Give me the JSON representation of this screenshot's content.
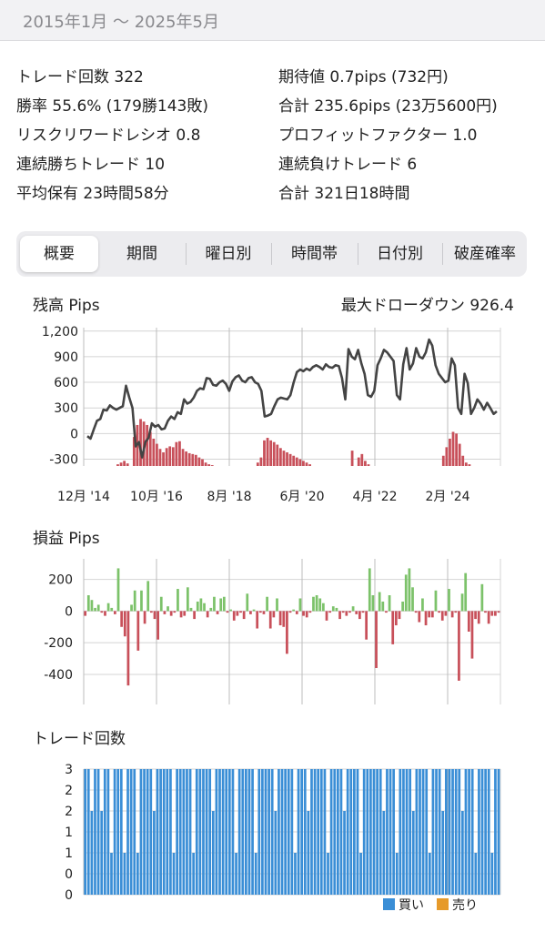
{
  "header": {
    "date_range": "2015年1月 〜 2025年5月"
  },
  "stats": {
    "trades": "トレード回数 322",
    "expectancy": "期待値 0.7pips (732円)",
    "win_rate": "勝率 55.6% (179勝143敗)",
    "total": "合計 235.6pips (23万5600円)",
    "risk_reward": "リスクリワードレシオ 0.8",
    "profit_factor": "プロフィットファクター 1.0",
    "win_streak": "連続勝ちトレード 10",
    "loss_streak": "連続負けトレード 6",
    "avg_hold": "平均保有 23時間58分",
    "total_hold": "合計 321日18時間"
  },
  "tabs": [
    "概要",
    "期間",
    "曜日別",
    "時間帯",
    "日付別",
    "破産確率"
  ],
  "colors": {
    "balance_line": "#444444",
    "drawdown_bar": "#c8505a",
    "profit": "#7cc26a",
    "loss": "#c8505a",
    "buy": "#3a8ed6",
    "sell": "#e69a2a"
  },
  "chart_data": [
    {
      "type": "line",
      "title": "残高 Pips",
      "annotation": "最大ドローダウン 926.4",
      "y_ticks": [
        "1,200",
        "900",
        "600",
        "300",
        "0",
        "-300"
      ],
      "x_ticks": [
        "12月 '14",
        "10月 '16",
        "8月 '18",
        "6月 '20",
        "4月 '22",
        "2月 '24"
      ],
      "ylim": [
        -380,
        1240
      ],
      "balance": [
        -30,
        -60,
        50,
        150,
        170,
        280,
        270,
        330,
        300,
        280,
        300,
        320,
        560,
        420,
        300,
        -150,
        -100,
        -280,
        -100,
        -50,
        120,
        80,
        100,
        50,
        60,
        150,
        200,
        170,
        250,
        230,
        400,
        350,
        370,
        420,
        500,
        530,
        520,
        650,
        640,
        570,
        560,
        600,
        620,
        580,
        500,
        610,
        660,
        680,
        620,
        600,
        650,
        660,
        600,
        580,
        500,
        200,
        210,
        230,
        320,
        400,
        420,
        410,
        400,
        450,
        600,
        720,
        750,
        730,
        760,
        740,
        780,
        800,
        780,
        750,
        810,
        780,
        770,
        800,
        790,
        650,
        400,
        990,
        900,
        870,
        980,
        820,
        700,
        450,
        430,
        500,
        800,
        880,
        980,
        950,
        900,
        850,
        450,
        400,
        810,
        1000,
        750,
        820,
        1000,
        900,
        880,
        950,
        1100,
        1030,
        800,
        700,
        650,
        600,
        620,
        880,
        800,
        300,
        230,
        700,
        590,
        230,
        300,
        400,
        350,
        280,
        360,
        300,
        230,
        260
      ],
      "drawdown": [
        0,
        0,
        0,
        0,
        0,
        0,
        0,
        0,
        0,
        0,
        20,
        40,
        60,
        30,
        0,
        340,
        480,
        550,
        520,
        480,
        400,
        320,
        260,
        200,
        160,
        210,
        230,
        220,
        280,
        290,
        200,
        170,
        150,
        140,
        130,
        100,
        80,
        40,
        20,
        10,
        0,
        0,
        0,
        0,
        0,
        0,
        0,
        0,
        0,
        0,
        0,
        0,
        0,
        40,
        100,
        300,
        330,
        300,
        280,
        250,
        210,
        180,
        160,
        140,
        120,
        100,
        80,
        60,
        40,
        20,
        0,
        0,
        0,
        0,
        0,
        0,
        0,
        0,
        0,
        0,
        0,
        0,
        180,
        0,
        100,
        140,
        60,
        20,
        0,
        0,
        0,
        0,
        0,
        0,
        0,
        0,
        0,
        0,
        0,
        0,
        0,
        0,
        0,
        0,
        0,
        0,
        0,
        0,
        0,
        0,
        120,
        220,
        320,
        400,
        380,
        260,
        120,
        40,
        20,
        0,
        0,
        0,
        0,
        0,
        0,
        0,
        0,
        0
      ]
    },
    {
      "type": "bar",
      "title": "損益 Pips",
      "y_ticks": [
        "200",
        "0",
        "-200",
        "-400"
      ],
      "ylim": [
        -590,
        330
      ],
      "values": [
        -30,
        100,
        70,
        20,
        40,
        -10,
        -30,
        50,
        20,
        -20,
        270,
        -100,
        -160,
        -470,
        40,
        130,
        -250,
        130,
        -80,
        190,
        -10,
        -50,
        -180,
        90,
        -20,
        30,
        -30,
        -10,
        140,
        -40,
        -30,
        150,
        20,
        -50,
        60,
        80,
        50,
        -40,
        20,
        90,
        -20,
        80,
        90,
        -10,
        10,
        -60,
        -30,
        -10,
        -50,
        110,
        -20,
        10,
        -110,
        -10,
        -20,
        90,
        -110,
        -40,
        80,
        -90,
        -100,
        -270,
        -10,
        10,
        -20,
        80,
        -30,
        -40,
        -10,
        90,
        100,
        80,
        50,
        -60,
        -10,
        30,
        20,
        -50,
        -10,
        -30,
        -10,
        30,
        -20,
        -50,
        -10,
        -180,
        270,
        100,
        -360,
        120,
        60,
        -10,
        100,
        -210,
        -90,
        -50,
        60,
        230,
        270,
        150,
        -10,
        -70,
        80,
        -90,
        -40,
        -40,
        130,
        -10,
        -60,
        -30,
        140,
        -40,
        -10,
        -440,
        110,
        240,
        -130,
        -300,
        -50,
        -80,
        170,
        -10,
        -80,
        -30,
        -30,
        -10
      ]
    },
    {
      "type": "bar",
      "title": "トレード回数",
      "y_ticks": [
        "3",
        "2",
        "2",
        "1",
        "1",
        "0",
        "0"
      ],
      "ylim": [
        0,
        3
      ],
      "legend": [
        "買い",
        "売り"
      ],
      "values": [
        3,
        3,
        2,
        3,
        3,
        2,
        3,
        3,
        1,
        3,
        3,
        3,
        1,
        3,
        3,
        3,
        1,
        3,
        3,
        3,
        3,
        2,
        3,
        3,
        3,
        3,
        3,
        1,
        3,
        3,
        3,
        3,
        3,
        1,
        3,
        3,
        3,
        3,
        3,
        2,
        3,
        3,
        3,
        3,
        3,
        3,
        1,
        3,
        3,
        3,
        3,
        3,
        1,
        3,
        3,
        3,
        3,
        3,
        2,
        3,
        3,
        3,
        3,
        3,
        1,
        3,
        3,
        3,
        2,
        3,
        3,
        3,
        3,
        3,
        1,
        3,
        3,
        3,
        3,
        2,
        3,
        3,
        3,
        3,
        1,
        3,
        3,
        3,
        3,
        3,
        3,
        2,
        3,
        3,
        3,
        1,
        3,
        3,
        3,
        3,
        2,
        3,
        3,
        3,
        3,
        1,
        3,
        3,
        3,
        2,
        3,
        3,
        3,
        3,
        3,
        2,
        3,
        3,
        3,
        1,
        3,
        3,
        3,
        3,
        1,
        3,
        3
      ]
    }
  ]
}
